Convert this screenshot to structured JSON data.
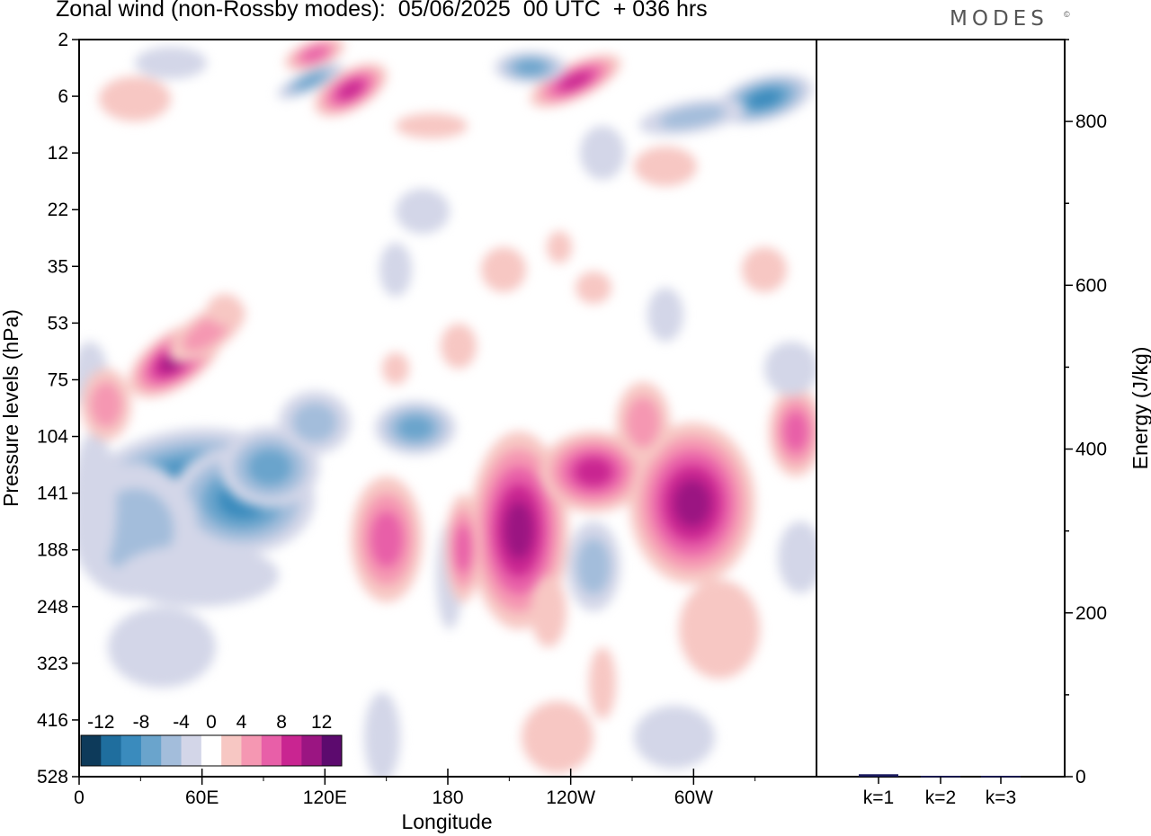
{
  "header": {
    "title": "Zonal wind (non-Rossby modes):  05/06/2025  00 UTC  + 036 hrs",
    "logo_text": "MODES",
    "logo_mark": "©"
  },
  "chart_data": [
    {
      "type": "heatmap",
      "title": "Zonal wind (non-Rossby modes):  05/06/2025  00 UTC  + 036 hrs",
      "xlabel": "Longitude",
      "ylabel": "Pressure levels (hPa)",
      "x_ticks": [
        "0",
        "60E",
        "120E",
        "180",
        "120W",
        "60W"
      ],
      "x_tick_degrees": [
        0,
        60,
        120,
        180,
        240,
        300
      ],
      "xlim": [
        0,
        360
      ],
      "y_ticks": [
        2,
        6,
        12,
        22,
        35,
        53,
        75,
        104,
        141,
        188,
        248,
        323,
        416,
        528
      ],
      "y_scale": "model levels (top to bottom)",
      "colorbar": {
        "labels": [
          "-12",
          "-8",
          "-4",
          "0",
          "4",
          "8",
          "12"
        ],
        "levels": [
          -14,
          -12,
          -10,
          -8,
          -6,
          -4,
          -2,
          2,
          4,
          6,
          8,
          10,
          12,
          14
        ],
        "colors": [
          "#0d3a5a",
          "#1f6e9e",
          "#3a8bbd",
          "#6aa4cc",
          "#a3bddb",
          "#d3d6e8",
          "#ffffff",
          "#f7c7c3",
          "#f597b2",
          "#e85fa8",
          "#c92591",
          "#9b1582",
          "#5c0a6e"
        ],
        "placement": "bottom-left inside plot"
      },
      "features": [
        {
          "lon": 42,
          "level": 141,
          "value": -12
        },
        {
          "lon": 76,
          "level": 141,
          "value": -10
        },
        {
          "lon": 152,
          "level": 104,
          "value": -8
        },
        {
          "lon": 44,
          "level": 75,
          "value": 10
        },
        {
          "lon": 207,
          "level": 141,
          "value": 8
        },
        {
          "lon": 240,
          "level": 124,
          "value": 6
        },
        {
          "lon": 295,
          "level": 135,
          "value": 8
        },
        {
          "lon": 138,
          "level": 180,
          "value": 4
        },
        {
          "lon": 355,
          "level": 104,
          "value": 6
        },
        {
          "lon": 370,
          "level": 6,
          "value": -8
        },
        {
          "lon": 100,
          "level": 5,
          "value": 8
        },
        {
          "lon": 258,
          "level": 5,
          "value": 8
        }
      ]
    },
    {
      "type": "bar",
      "categories": [
        "k=1",
        "k=2",
        "k=3"
      ],
      "values": [
        3,
        1,
        1
      ],
      "ylabel": "Energy (J/kg)",
      "ylim": [
        0,
        900
      ],
      "y_ticks": [
        0,
        200,
        400,
        600,
        800
      ],
      "bar_color": "#1a1a5e"
    }
  ]
}
